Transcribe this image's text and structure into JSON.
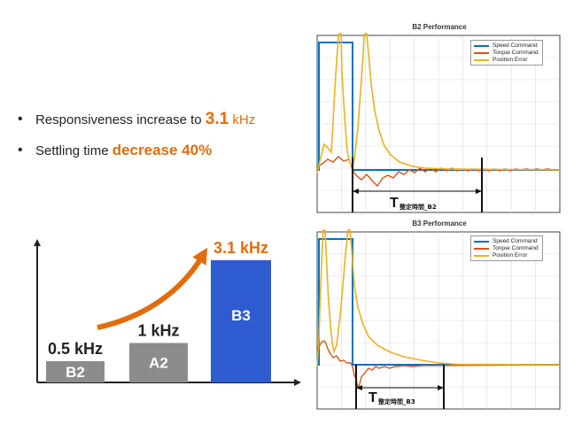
{
  "bullets": [
    {
      "prefix": "Responsiveness increase to ",
      "highlight": "3.1",
      "suffix": " kHz"
    },
    {
      "prefix": "Settling time ",
      "highlight": "decrease 40%",
      "suffix": ""
    }
  ],
  "colors": {
    "accent_orange": "#e36c0a",
    "bar_gray": "#8c8c8c",
    "bar_blue": "#2f5bd0",
    "speed": "#0072bd",
    "torque": "#d95319",
    "position_error": "#edb120"
  },
  "chart_data": [
    {
      "type": "bar",
      "title": "",
      "categories": [
        "B2",
        "A2",
        "B3"
      ],
      "values": [
        0.5,
        1.0,
        3.1
      ],
      "value_labels": [
        "0.5 kHz",
        "1 kHz",
        "3.1 kHz"
      ],
      "unit": "kHz",
      "ylim": [
        0,
        3.3
      ]
    },
    {
      "type": "line",
      "title": "B2 Performance",
      "series": [
        {
          "name": "Speed Command"
        },
        {
          "name": "Torque Command"
        },
        {
          "name": "Position Error"
        }
      ],
      "annotation": {
        "symbol": "T",
        "subscript": "整定時間_B2"
      }
    },
    {
      "type": "line",
      "title": "B3 Performance",
      "series": [
        {
          "name": "Speed Command"
        },
        {
          "name": "Torque Command"
        },
        {
          "name": "Position Error"
        }
      ],
      "annotation": {
        "symbol": "T",
        "subscript": "整定時間_B3"
      }
    }
  ]
}
